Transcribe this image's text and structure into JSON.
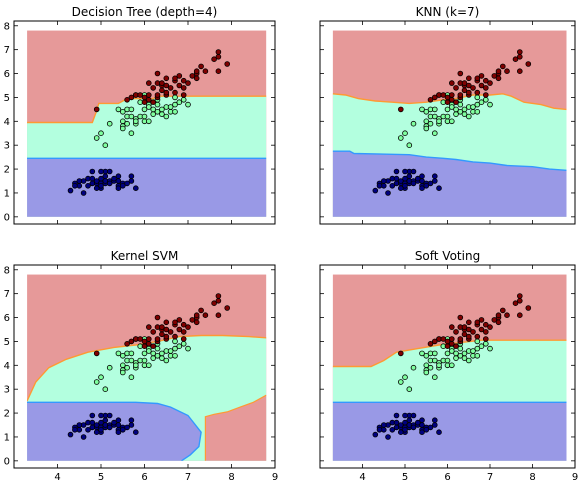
{
  "colors": {
    "class0": "#000080",
    "class1": "#7fff9f",
    "class2": "#800000",
    "region0": "#9999e6",
    "region1": "#b3ffdf",
    "region2": "#e69999",
    "boundary_low": "#3399ff",
    "boundary_high": "#ff9933"
  },
  "chart_data": [
    {
      "type": "scatter",
      "title": "Decision Tree (depth=4)",
      "xlim": [
        3,
        9
      ],
      "ylim": [
        -0.3,
        8.2
      ],
      "xticks": [
        4,
        5,
        6,
        7,
        8,
        9
      ],
      "yticks": [
        0,
        1,
        2,
        3,
        4,
        5,
        6,
        7,
        8
      ],
      "show_x_ticklabels": false,
      "show_y_ticklabels": true,
      "grid": false,
      "boundary_low": [
        [
          3.3,
          2.45
        ],
        [
          8.8,
          2.45
        ]
      ],
      "boundary_high": [
        [
          3.3,
          3.95
        ],
        [
          4.8,
          3.95
        ],
        [
          4.9,
          4.45
        ],
        [
          4.95,
          4.75
        ],
        [
          5.4,
          4.75
        ],
        [
          5.6,
          4.95
        ],
        [
          6.2,
          4.95
        ],
        [
          6.3,
          5.05
        ],
        [
          8.8,
          5.05
        ]
      ]
    },
    {
      "type": "scatter",
      "title": "KNN (k=7)",
      "xlim": [
        3,
        9
      ],
      "ylim": [
        -0.3,
        8.2
      ],
      "xticks": [
        4,
        5,
        6,
        7,
        8,
        9
      ],
      "yticks": [
        0,
        1,
        2,
        3,
        4,
        5,
        6,
        7,
        8
      ],
      "show_x_ticklabels": false,
      "show_y_ticklabels": false,
      "grid": false,
      "boundary_low": [
        [
          3.3,
          2.75
        ],
        [
          3.7,
          2.75
        ],
        [
          3.8,
          2.65
        ],
        [
          5.1,
          2.6
        ],
        [
          5.5,
          2.5
        ],
        [
          5.9,
          2.45
        ],
        [
          6.2,
          2.4
        ],
        [
          6.6,
          2.3
        ],
        [
          7.0,
          2.25
        ],
        [
          7.4,
          2.15
        ],
        [
          8.0,
          2.1
        ],
        [
          8.4,
          2.0
        ],
        [
          8.8,
          1.95
        ]
      ],
      "boundary_high": [
        [
          3.3,
          5.15
        ],
        [
          3.6,
          5.1
        ],
        [
          3.9,
          4.95
        ],
        [
          4.3,
          4.85
        ],
        [
          4.7,
          4.8
        ],
        [
          5.1,
          4.75
        ],
        [
          5.5,
          4.8
        ],
        [
          5.9,
          4.9
        ],
        [
          6.2,
          4.95
        ],
        [
          6.6,
          5.1
        ],
        [
          7.0,
          5.1
        ],
        [
          7.3,
          5.15
        ],
        [
          7.5,
          5.05
        ],
        [
          7.8,
          4.8
        ],
        [
          8.2,
          4.7
        ],
        [
          8.5,
          4.55
        ],
        [
          8.8,
          4.5
        ]
      ]
    },
    {
      "type": "scatter",
      "title": "Kernel SVM",
      "xlim": [
        3,
        9
      ],
      "ylim": [
        -0.3,
        8.2
      ],
      "xticks": [
        4,
        5,
        6,
        7,
        8,
        9
      ],
      "yticks": [
        0,
        1,
        2,
        3,
        4,
        5,
        6,
        7,
        8
      ],
      "show_x_ticklabels": true,
      "show_y_ticklabels": true,
      "grid": false,
      "boundary_low": [
        [
          3.3,
          2.45
        ],
        [
          5.8,
          2.45
        ],
        [
          6.3,
          2.4
        ],
        [
          6.6,
          2.25
        ],
        [
          7.0,
          1.9
        ],
        [
          7.3,
          1.2
        ],
        [
          7.25,
          0.6
        ],
        [
          7.05,
          0.25
        ],
        [
          6.85,
          0.0
        ]
      ],
      "boundary_low_right": [
        [
          7.4,
          0.0
        ],
        [
          7.4,
          1.85
        ],
        [
          7.6,
          1.95
        ],
        [
          7.9,
          2.05
        ],
        [
          8.2,
          2.25
        ],
        [
          8.5,
          2.45
        ],
        [
          8.8,
          2.75
        ]
      ],
      "boundary_high": [
        [
          3.3,
          2.5
        ],
        [
          3.5,
          3.3
        ],
        [
          3.8,
          3.9
        ],
        [
          4.2,
          4.25
        ],
        [
          4.7,
          4.55
        ],
        [
          5.3,
          4.75
        ],
        [
          5.8,
          4.85
        ],
        [
          6.3,
          5.0
        ],
        [
          6.8,
          5.2
        ],
        [
          7.3,
          5.25
        ],
        [
          7.8,
          5.25
        ],
        [
          8.4,
          5.2
        ],
        [
          8.8,
          5.15
        ]
      ]
    },
    {
      "type": "scatter",
      "title": "Soft Voting",
      "xlim": [
        3,
        9
      ],
      "ylim": [
        -0.3,
        8.2
      ],
      "xticks": [
        4,
        5,
        6,
        7,
        8,
        9
      ],
      "yticks": [
        0,
        1,
        2,
        3,
        4,
        5,
        6,
        7,
        8
      ],
      "show_x_ticklabels": true,
      "show_y_ticklabels": false,
      "grid": false,
      "boundary_low": [
        [
          3.3,
          2.45
        ],
        [
          8.8,
          2.45
        ]
      ],
      "boundary_high": [
        [
          3.3,
          3.95
        ],
        [
          4.2,
          3.95
        ],
        [
          4.5,
          4.2
        ],
        [
          4.8,
          4.55
        ],
        [
          5.3,
          4.7
        ],
        [
          5.8,
          4.85
        ],
        [
          6.3,
          4.95
        ],
        [
          6.8,
          5.05
        ],
        [
          8.8,
          5.05
        ]
      ]
    }
  ],
  "points": [
    {
      "x": 4.4,
      "y": 1.4,
      "c": 0
    },
    {
      "x": 4.3,
      "y": 1.1,
      "c": 0
    },
    {
      "x": 4.6,
      "y": 1.0,
      "c": 0
    },
    {
      "x": 4.5,
      "y": 1.3,
      "c": 0
    },
    {
      "x": 4.7,
      "y": 1.6,
      "c": 0
    },
    {
      "x": 4.8,
      "y": 1.4,
      "c": 0
    },
    {
      "x": 4.8,
      "y": 1.6,
      "c": 0
    },
    {
      "x": 4.9,
      "y": 1.4,
      "c": 0
    },
    {
      "x": 4.9,
      "y": 1.5,
      "c": 0
    },
    {
      "x": 5.0,
      "y": 1.4,
      "c": 0
    },
    {
      "x": 5.0,
      "y": 1.6,
      "c": 0
    },
    {
      "x": 5.0,
      "y": 1.2,
      "c": 0
    },
    {
      "x": 5.1,
      "y": 1.4,
      "c": 0
    },
    {
      "x": 5.1,
      "y": 1.5,
      "c": 0
    },
    {
      "x": 5.1,
      "y": 1.7,
      "c": 0
    },
    {
      "x": 5.1,
      "y": 1.9,
      "c": 0
    },
    {
      "x": 5.2,
      "y": 1.5,
      "c": 0
    },
    {
      "x": 5.2,
      "y": 1.4,
      "c": 0
    },
    {
      "x": 5.3,
      "y": 1.5,
      "c": 0
    },
    {
      "x": 5.4,
      "y": 1.7,
      "c": 0
    },
    {
      "x": 5.4,
      "y": 1.3,
      "c": 0
    },
    {
      "x": 5.4,
      "y": 1.5,
      "c": 0
    },
    {
      "x": 5.5,
      "y": 1.4,
      "c": 0
    },
    {
      "x": 5.5,
      "y": 1.3,
      "c": 0
    },
    {
      "x": 5.7,
      "y": 1.5,
      "c": 0
    },
    {
      "x": 5.7,
      "y": 1.7,
      "c": 0
    },
    {
      "x": 5.8,
      "y": 1.2,
      "c": 0
    },
    {
      "x": 4.6,
      "y": 1.5,
      "c": 0
    },
    {
      "x": 4.4,
      "y": 1.3,
      "c": 0
    },
    {
      "x": 5.0,
      "y": 1.9,
      "c": 0
    },
    {
      "x": 4.9,
      "y": 1.2,
      "c": 0
    },
    {
      "x": 5.6,
      "y": 1.4,
      "c": 0
    },
    {
      "x": 4.7,
      "y": 1.3,
      "c": 0
    },
    {
      "x": 5.3,
      "y": 1.6,
      "c": 0
    },
    {
      "x": 4.8,
      "y": 1.9,
      "c": 0
    },
    {
      "x": 5.2,
      "y": 1.9,
      "c": 0
    },
    {
      "x": 4.5,
      "y": 1.5,
      "c": 0
    },
    {
      "x": 5.4,
      "y": 1.2,
      "c": 0
    },
    {
      "x": 5.0,
      "y": 1.3,
      "c": 0
    },
    {
      "x": 4.9,
      "y": 3.3,
      "c": 1
    },
    {
      "x": 5.0,
      "y": 3.5,
      "c": 1
    },
    {
      "x": 5.1,
      "y": 3.0,
      "c": 1
    },
    {
      "x": 5.2,
      "y": 3.9,
      "c": 1
    },
    {
      "x": 5.4,
      "y": 4.5,
      "c": 1
    },
    {
      "x": 5.5,
      "y": 4.0,
      "c": 1
    },
    {
      "x": 5.5,
      "y": 3.8,
      "c": 1
    },
    {
      "x": 5.5,
      "y": 4.4,
      "c": 1
    },
    {
      "x": 5.6,
      "y": 3.9,
      "c": 1
    },
    {
      "x": 5.6,
      "y": 4.2,
      "c": 1
    },
    {
      "x": 5.6,
      "y": 4.5,
      "c": 1
    },
    {
      "x": 5.7,
      "y": 3.5,
      "c": 1
    },
    {
      "x": 5.7,
      "y": 4.2,
      "c": 1
    },
    {
      "x": 5.7,
      "y": 4.5,
      "c": 1
    },
    {
      "x": 5.8,
      "y": 3.9,
      "c": 1
    },
    {
      "x": 5.8,
      "y": 4.1,
      "c": 1
    },
    {
      "x": 5.9,
      "y": 4.2,
      "c": 1
    },
    {
      "x": 5.9,
      "y": 4.8,
      "c": 1
    },
    {
      "x": 6.0,
      "y": 4.0,
      "c": 1
    },
    {
      "x": 6.0,
      "y": 4.5,
      "c": 1
    },
    {
      "x": 6.0,
      "y": 5.1,
      "c": 1
    },
    {
      "x": 6.1,
      "y": 4.0,
      "c": 1
    },
    {
      "x": 6.1,
      "y": 4.7,
      "c": 1
    },
    {
      "x": 6.2,
      "y": 4.3,
      "c": 1
    },
    {
      "x": 6.2,
      "y": 4.5,
      "c": 1
    },
    {
      "x": 6.3,
      "y": 4.4,
      "c": 1
    },
    {
      "x": 6.3,
      "y": 4.7,
      "c": 1
    },
    {
      "x": 6.3,
      "y": 4.9,
      "c": 1
    },
    {
      "x": 6.4,
      "y": 4.3,
      "c": 1
    },
    {
      "x": 6.4,
      "y": 4.5,
      "c": 1
    },
    {
      "x": 6.5,
      "y": 4.6,
      "c": 1
    },
    {
      "x": 6.6,
      "y": 4.4,
      "c": 1
    },
    {
      "x": 6.6,
      "y": 4.6,
      "c": 1
    },
    {
      "x": 6.7,
      "y": 4.4,
      "c": 1
    },
    {
      "x": 6.7,
      "y": 4.7,
      "c": 1
    },
    {
      "x": 6.8,
      "y": 4.8,
      "c": 1
    },
    {
      "x": 6.9,
      "y": 4.9,
      "c": 1
    },
    {
      "x": 7.0,
      "y": 4.7,
      "c": 1
    },
    {
      "x": 5.5,
      "y": 3.7,
      "c": 1
    },
    {
      "x": 5.8,
      "y": 4.0,
      "c": 1
    },
    {
      "x": 6.1,
      "y": 4.6,
      "c": 1
    },
    {
      "x": 6.7,
      "y": 5.0,
      "c": 1
    },
    {
      "x": 6.0,
      "y": 4.2,
      "c": 1
    },
    {
      "x": 6.5,
      "y": 4.2,
      "c": 1
    },
    {
      "x": 4.9,
      "y": 4.5,
      "c": 2
    },
    {
      "x": 5.6,
      "y": 4.9,
      "c": 2
    },
    {
      "x": 5.7,
      "y": 5.0,
      "c": 2
    },
    {
      "x": 5.8,
      "y": 5.1,
      "c": 2
    },
    {
      "x": 5.8,
      "y": 5.1,
      "c": 2
    },
    {
      "x": 5.9,
      "y": 5.1,
      "c": 2
    },
    {
      "x": 6.0,
      "y": 4.8,
      "c": 2
    },
    {
      "x": 6.0,
      "y": 5.0,
      "c": 2
    },
    {
      "x": 6.1,
      "y": 5.6,
      "c": 2
    },
    {
      "x": 6.1,
      "y": 4.9,
      "c": 2
    },
    {
      "x": 6.2,
      "y": 4.8,
      "c": 2
    },
    {
      "x": 6.2,
      "y": 5.4,
      "c": 2
    },
    {
      "x": 6.3,
      "y": 5.0,
      "c": 2
    },
    {
      "x": 6.3,
      "y": 5.1,
      "c": 2
    },
    {
      "x": 6.3,
      "y": 5.6,
      "c": 2
    },
    {
      "x": 6.3,
      "y": 6.0,
      "c": 2
    },
    {
      "x": 6.4,
      "y": 5.3,
      "c": 2
    },
    {
      "x": 6.4,
      "y": 5.5,
      "c": 2
    },
    {
      "x": 6.4,
      "y": 5.6,
      "c": 2
    },
    {
      "x": 6.5,
      "y": 5.1,
      "c": 2
    },
    {
      "x": 6.5,
      "y": 5.2,
      "c": 2
    },
    {
      "x": 6.5,
      "y": 5.5,
      "c": 2
    },
    {
      "x": 6.5,
      "y": 5.8,
      "c": 2
    },
    {
      "x": 6.7,
      "y": 5.2,
      "c": 2
    },
    {
      "x": 6.7,
      "y": 5.7,
      "c": 2
    },
    {
      "x": 6.7,
      "y": 5.8,
      "c": 2
    },
    {
      "x": 6.8,
      "y": 5.5,
      "c": 2
    },
    {
      "x": 6.8,
      "y": 5.9,
      "c": 2
    },
    {
      "x": 6.9,
      "y": 5.1,
      "c": 2
    },
    {
      "x": 6.9,
      "y": 5.4,
      "c": 2
    },
    {
      "x": 6.9,
      "y": 5.7,
      "c": 2
    },
    {
      "x": 7.1,
      "y": 5.9,
      "c": 2
    },
    {
      "x": 7.2,
      "y": 5.8,
      "c": 2
    },
    {
      "x": 7.2,
      "y": 6.0,
      "c": 2
    },
    {
      "x": 7.2,
      "y": 6.1,
      "c": 2
    },
    {
      "x": 7.3,
      "y": 6.3,
      "c": 2
    },
    {
      "x": 7.4,
      "y": 6.1,
      "c": 2
    },
    {
      "x": 7.6,
      "y": 6.6,
      "c": 2
    },
    {
      "x": 7.7,
      "y": 6.7,
      "c": 2
    },
    {
      "x": 7.7,
      "y": 6.9,
      "c": 2
    },
    {
      "x": 7.7,
      "y": 6.1,
      "c": 2
    },
    {
      "x": 7.9,
      "y": 6.4,
      "c": 2
    },
    {
      "x": 6.1,
      "y": 5.1,
      "c": 2
    },
    {
      "x": 6.6,
      "y": 5.4,
      "c": 2
    },
    {
      "x": 7.0,
      "y": 5.6,
      "c": 2
    }
  ]
}
